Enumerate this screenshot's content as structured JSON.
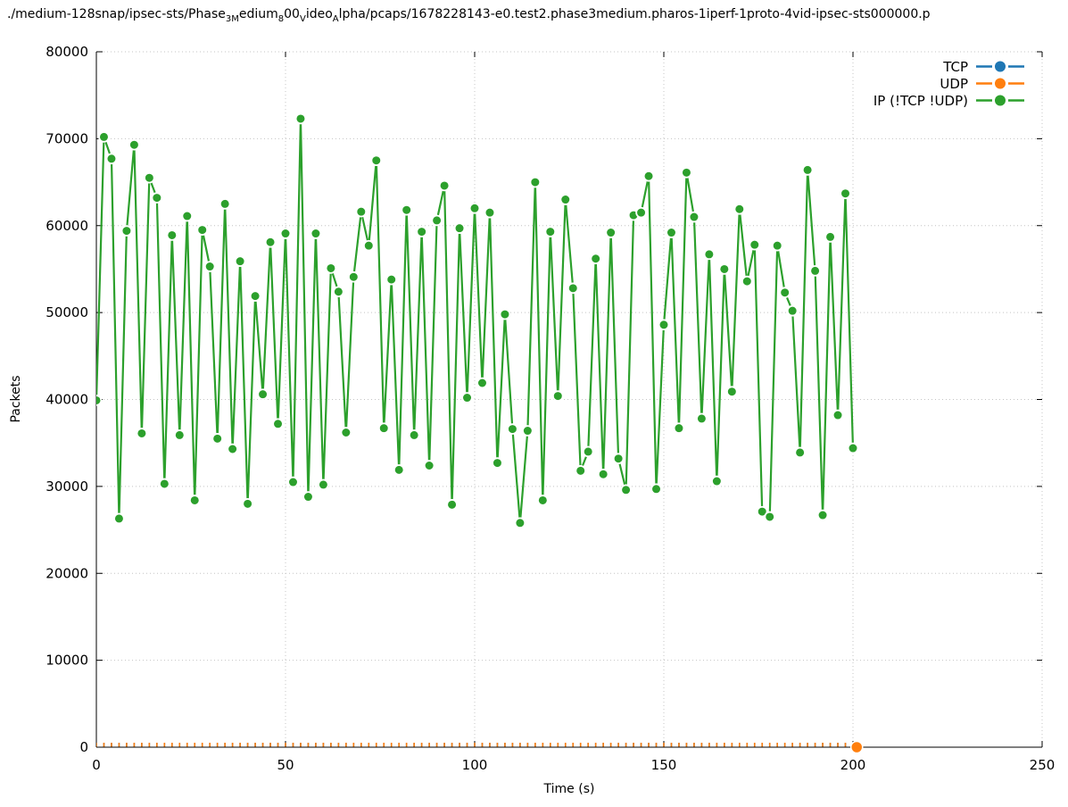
{
  "title": {
    "segments": [
      {
        "text": "./medium-128snap/ipsec-sts/Phase",
        "sub": false
      },
      {
        "text": "3M",
        "sub": true
      },
      {
        "text": "edium",
        "sub": false
      },
      {
        "text": "8",
        "sub": true
      },
      {
        "text": "00",
        "sub": false
      },
      {
        "text": "V",
        "sub": true
      },
      {
        "text": "ideo",
        "sub": false
      },
      {
        "text": "A",
        "sub": true
      },
      {
        "text": "lpha/pcaps/1678228143-e0.test2.phase3medium.pharos-1iperf-1proto-4vid-ipsec-sts000000.p",
        "sub": false
      }
    ]
  },
  "axes": {
    "x": {
      "label": "Time (s)",
      "min": 0,
      "max": 250,
      "ticks": [
        0,
        50,
        100,
        150,
        200,
        250
      ]
    },
    "y": {
      "label": "Packets",
      "min": 0,
      "max": 80000,
      "ticks": [
        0,
        10000,
        20000,
        30000,
        40000,
        50000,
        60000,
        70000,
        80000
      ]
    }
  },
  "legend": {
    "position": "top-right"
  },
  "chart_data": {
    "type": "line",
    "xlabel": "Time (s)",
    "ylabel": "Packets",
    "xlim": [
      0,
      250
    ],
    "ylim": [
      0,
      80000
    ],
    "grid": true,
    "legend_position": "top-right",
    "series": [
      {
        "name": "TCP",
        "color": "#1f77b4",
        "x_start": 0,
        "x_end": 200,
        "x_step": 2,
        "constant_value": 0,
        "note": "all samples 0 packets - markers hidden beneath UDP markers on the x-axis"
      },
      {
        "name": "UDP",
        "color": "#ff7f0e",
        "x_start": 0,
        "x_end": 200,
        "x_step": 2,
        "constant_value": 0,
        "final_point": {
          "x": 201,
          "y": 0
        }
      },
      {
        "name": "IP (!TCP  !UDP)",
        "color": "#2ca02c",
        "x_start": 0,
        "x_step": 2,
        "values": [
          39900,
          70200,
          67700,
          26300,
          59400,
          69300,
          36100,
          65500,
          63200,
          30300,
          58900,
          35900,
          61100,
          28400,
          59500,
          55300,
          35500,
          62500,
          34300,
          55900,
          28000,
          51900,
          40600,
          58100,
          37200,
          59100,
          30500,
          72300,
          28800,
          59100,
          30200,
          55100,
          52400,
          36200,
          54100,
          61600,
          57700,
          67500,
          36700,
          53800,
          31900,
          61800,
          35900,
          59300,
          32400,
          60600,
          64600,
          27900,
          59700,
          40200,
          62000,
          41900,
          61500,
          32700,
          49800,
          36600,
          25800,
          36400,
          65000,
          28400,
          59300,
          40400,
          63000,
          52800,
          31800,
          34000,
          56200,
          31400,
          59200,
          33200,
          29600,
          61200,
          61500,
          65700,
          29700,
          48600,
          59200,
          36700,
          66100,
          61000,
          37800,
          56700,
          30600,
          55000,
          40900,
          61900,
          53600,
          57800,
          27100,
          26500,
          57700,
          52300,
          50200,
          33900,
          66400,
          54800,
          26700,
          58700,
          38200,
          63700,
          34400
        ]
      }
    ]
  }
}
